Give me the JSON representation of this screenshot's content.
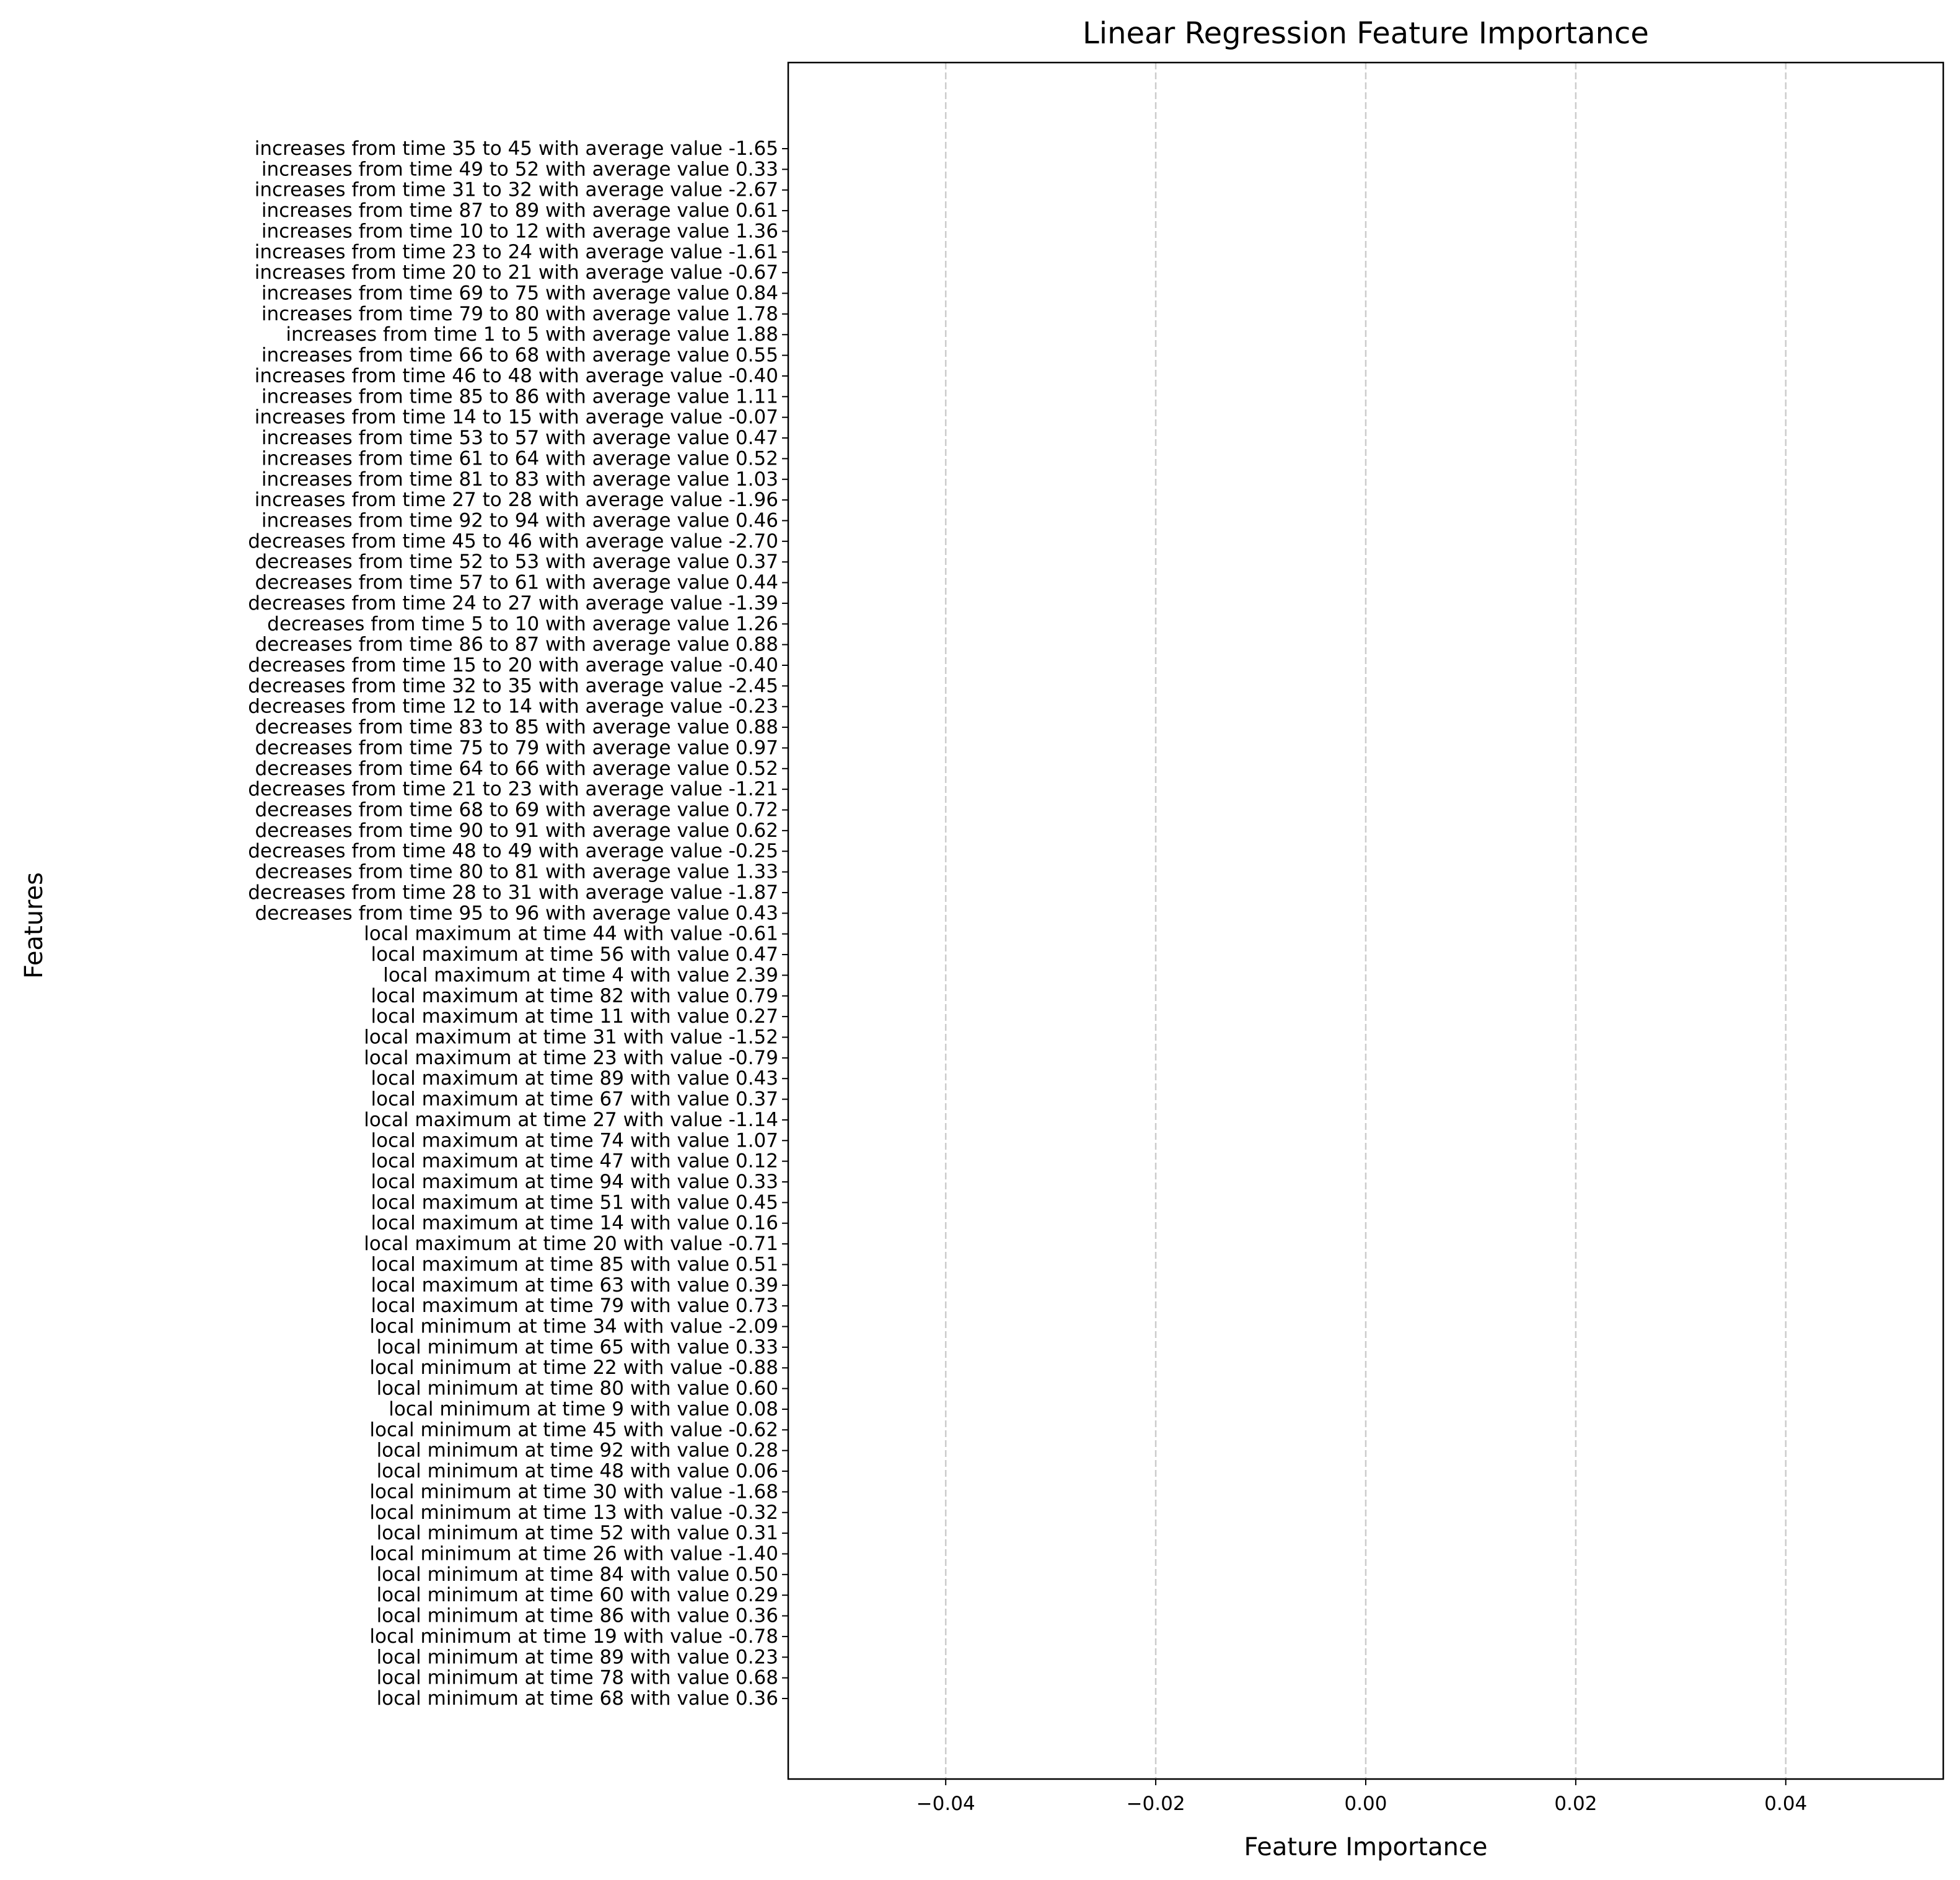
{
  "chart_data": {
    "type": "bar",
    "orientation": "horizontal",
    "title": "Linear Regression Feature Importance",
    "xlabel": "Feature Importance",
    "ylabel": "Features",
    "xlim": [
      -0.055,
      0.055
    ],
    "xticks": [
      -0.04,
      -0.02,
      0.0,
      0.02,
      0.04
    ],
    "xtick_labels": [
      "−0.04",
      "−0.02",
      "0.00",
      "0.02",
      "0.04"
    ],
    "grid": "x-dashed",
    "categories": [
      "increases from time 35 to 45 with average value -1.65",
      "increases from time 49 to 52 with average value 0.33",
      "increases from time 31 to 32 with average value -2.67",
      "increases from time 87 to 89 with average value 0.61",
      "increases from time 10 to 12 with average value 1.36",
      "increases from time 23 to 24 with average value -1.61",
      "increases from time 20 to 21 with average value -0.67",
      "increases from time 69 to 75 with average value 0.84",
      "increases from time 79 to 80 with average value 1.78",
      "increases from time 1 to 5 with average value 1.88",
      "increases from time 66 to 68 with average value 0.55",
      "increases from time 46 to 48 with average value -0.40",
      "increases from time 85 to 86 with average value 1.11",
      "increases from time 14 to 15 with average value -0.07",
      "increases from time 53 to 57 with average value 0.47",
      "increases from time 61 to 64 with average value 0.52",
      "increases from time 81 to 83 with average value 1.03",
      "increases from time 27 to 28 with average value -1.96",
      "increases from time 92 to 94 with average value 0.46",
      "decreases from time 45 to 46 with average value -2.70",
      "decreases from time 52 to 53 with average value 0.37",
      "decreases from time 57 to 61 with average value 0.44",
      "decreases from time 24 to 27 with average value -1.39",
      "decreases from time 5 to 10 with average value 1.26",
      "decreases from time 86 to 87 with average value 0.88",
      "decreases from time 15 to 20 with average value -0.40",
      "decreases from time 32 to 35 with average value -2.45",
      "decreases from time 12 to 14 with average value -0.23",
      "decreases from time 83 to 85 with average value 0.88",
      "decreases from time 75 to 79 with average value 0.97",
      "decreases from time 64 to 66 with average value 0.52",
      "decreases from time 21 to 23 with average value -1.21",
      "decreases from time 68 to 69 with average value 0.72",
      "decreases from time 90 to 91 with average value 0.62",
      "decreases from time 48 to 49 with average value -0.25",
      "decreases from time 80 to 81 with average value 1.33",
      "decreases from time 28 to 31 with average value -1.87",
      "decreases from time 95 to 96 with average value 0.43",
      "local maximum at time 44 with value -0.61",
      "local maximum at time 56 with value 0.47",
      "local maximum at time 4 with value 2.39",
      "local maximum at time 82 with value 0.79",
      "local maximum at time 11 with value 0.27",
      "local maximum at time 31 with value -1.52",
      "local maximum at time 23 with value -0.79",
      "local maximum at time 89 with value 0.43",
      "local maximum at time 67 with value 0.37",
      "local maximum at time 27 with value -1.14",
      "local maximum at time 74 with value 1.07",
      "local maximum at time 47 with value 0.12",
      "local maximum at time 94 with value 0.33",
      "local maximum at time 51 with value 0.45",
      "local maximum at time 14 with value 0.16",
      "local maximum at time 20 with value -0.71",
      "local maximum at time 85 with value 0.51",
      "local maximum at time 63 with value 0.39",
      "local maximum at time 79 with value 0.73",
      "local minimum at time 34 with value -2.09",
      "local minimum at time 65 with value 0.33",
      "local minimum at time 22 with value -0.88",
      "local minimum at time 80 with value 0.60",
      "local minimum at time 9 with value 0.08",
      "local minimum at time 45 with value -0.62",
      "local minimum at time 92 with value 0.28",
      "local minimum at time 48 with value 0.06",
      "local minimum at time 30 with value -1.68",
      "local minimum at time 13 with value -0.32",
      "local minimum at time 52 with value 0.31",
      "local minimum at time 26 with value -1.40",
      "local minimum at time 84 with value 0.50",
      "local minimum at time 60 with value 0.29",
      "local minimum at time 86 with value 0.36",
      "local minimum at time 19 with value -0.78",
      "local minimum at time 89 with value 0.23",
      "local minimum at time 78 with value 0.68",
      "local minimum at time 68 with value 0.36"
    ],
    "values": [
      0,
      0,
      0,
      0,
      0,
      0,
      0,
      0,
      0,
      0,
      0,
      0,
      0,
      0,
      0,
      0,
      0,
      0,
      0,
      0,
      0,
      0,
      0,
      0,
      0,
      0,
      0,
      0,
      0,
      0,
      0,
      0,
      0,
      0,
      0,
      0,
      0,
      0,
      0,
      0,
      0,
      0,
      0,
      0,
      0,
      0,
      0,
      0,
      0,
      0,
      0,
      0,
      0,
      0,
      0,
      0,
      0,
      0,
      0,
      0,
      0,
      0,
      0,
      0,
      0,
      0,
      0,
      0,
      0,
      0,
      0,
      0,
      0,
      0,
      0,
      0
    ],
    "colors": {
      "axis": "#000000",
      "grid": "#cccccc",
      "bar": "#1f77b4"
    }
  }
}
